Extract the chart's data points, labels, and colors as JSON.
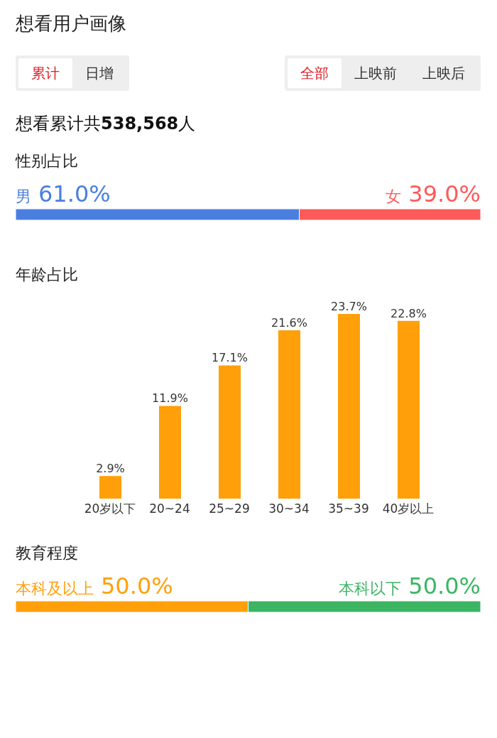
{
  "chart_data": [
    {
      "type": "other",
      "title": "想看用户画像",
      "annotations": [
        "累计",
        "日增",
        "全部",
        "上映前",
        "上映后",
        "想看累计共538,568人"
      ]
    },
    {
      "type": "bar",
      "title": "性别占比",
      "orientation": "horizontal",
      "stacked": true,
      "categories": [
        null
      ],
      "xlim": [
        0,
        100
      ],
      "tick_labels": false,
      "series": [
        {
          "name": "男",
          "color": "#4a7fe0",
          "values": [
            61.0
          ],
          "value_labels": [
            "61.0%"
          ]
        },
        {
          "name": "女",
          "color": "#ff5a5a",
          "values": [
            39.0
          ],
          "value_labels": [
            "39.0%"
          ]
        }
      ]
    },
    {
      "type": "bar",
      "title": "年龄占比",
      "categories": [
        "20岁以下",
        "20~24",
        "25~29",
        "30~34",
        "35~39",
        "40岁以上"
      ],
      "values": [
        2.9,
        11.9,
        17.1,
        21.6,
        23.7,
        22.8
      ],
      "value_labels": [
        "2.9%",
        "11.9%",
        "17.1%",
        "21.6%",
        "23.7%",
        "22.8%"
      ],
      "color": "#ff9f0a",
      "tick_labels": "x"
    },
    {
      "type": "bar",
      "title": "教育程度",
      "orientation": "horizontal",
      "stacked": true,
      "categories": [
        null
      ],
      "xlim": [
        0,
        100
      ],
      "tick_labels": false,
      "series": [
        {
          "name": "本科及以上",
          "color": "#ff9f0a",
          "values": [
            50.0
          ],
          "value_labels": [
            "50.0%"
          ]
        },
        {
          "name": "本科以下",
          "color": "#3cb563",
          "values": [
            50.0
          ],
          "value_labels": [
            "50.0%"
          ]
        }
      ]
    }
  ]
}
